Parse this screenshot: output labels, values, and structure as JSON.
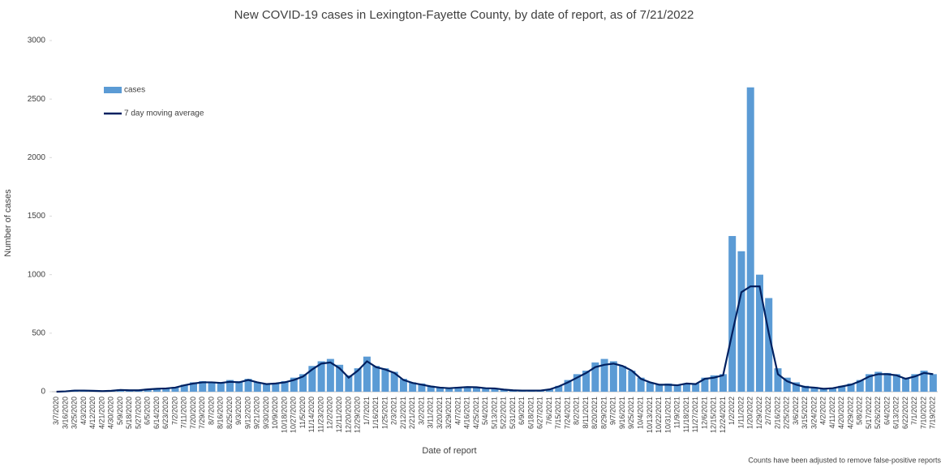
{
  "chart_data": {
    "type": "bar",
    "title": "New COVID-19 cases in Lexington-Fayette County, by date of report, as of 7/21/2022",
    "x_label": "Date of report",
    "y_label": "Number of cases",
    "footnote": "Counts have been adjusted to remove false-positive reports",
    "categories": [
      "3/7/2020",
      "3/16/2020",
      "3/25/2020",
      "4/3/2020",
      "4/12/2020",
      "4/21/2020",
      "4/30/2020",
      "5/9/2020",
      "5/18/2020",
      "5/27/2020",
      "6/5/2020",
      "6/14/2020",
      "6/23/2020",
      "7/2/2020",
      "7/11/2020",
      "7/20/2020",
      "7/29/2020",
      "8/7/2020",
      "8/16/2020",
      "8/25/2020",
      "9/3/2020",
      "9/12/2020",
      "9/21/2020",
      "9/30/2020",
      "10/9/2020",
      "10/18/2020",
      "10/27/2020",
      "11/5/2020",
      "11/14/2020",
      "11/23/2020",
      "12/2/2020",
      "12/11/2020",
      "12/20/2020",
      "12/29/2020",
      "1/7/2021",
      "1/16/2021",
      "1/25/2021",
      "2/3/2021",
      "2/12/2021",
      "2/21/2021",
      "3/2/2021",
      "3/11/2021",
      "3/20/2021",
      "3/29/2021",
      "4/7/2021",
      "4/16/2021",
      "4/25/2021",
      "5/4/2021",
      "5/13/2021",
      "5/22/2021",
      "5/31/2021",
      "6/9/2021",
      "6/18/2021",
      "6/27/2021",
      "7/6/2021",
      "7/15/2021",
      "7/24/2021",
      "8/2/2021",
      "8/11/2021",
      "8/20/2021",
      "8/29/2021",
      "9/7/2021",
      "9/16/2021",
      "9/25/2021",
      "10/4/2021",
      "10/13/2021",
      "10/22/2021",
      "10/31/2021",
      "11/9/2021",
      "11/18/2021",
      "11/27/2021",
      "12/6/2021",
      "12/15/2021",
      "12/24/2021",
      "1/2/2022",
      "1/11/2022",
      "1/20/2022",
      "1/29/2022",
      "2/7/2022",
      "2/16/2022",
      "2/25/2022",
      "3/6/2022",
      "3/15/2022",
      "3/24/2022",
      "4/2/2022",
      "4/11/2022",
      "4/20/2022",
      "4/29/2022",
      "5/8/2022",
      "5/17/2022",
      "5/26/2022",
      "6/4/2022",
      "6/13/2022",
      "6/22/2022",
      "7/1/2022",
      "7/10/2022",
      "7/19/2022"
    ],
    "series": [
      {
        "name": "cases",
        "type": "bar",
        "color": "#5b9bd5",
        "values": [
          0,
          5,
          15,
          12,
          8,
          5,
          10,
          20,
          15,
          15,
          25,
          30,
          30,
          40,
          60,
          80,
          90,
          85,
          80,
          100,
          90,
          110,
          80,
          70,
          75,
          90,
          120,
          150,
          220,
          260,
          280,
          230,
          140,
          200,
          300,
          220,
          200,
          170,
          110,
          80,
          70,
          50,
          40,
          35,
          40,
          45,
          40,
          35,
          30,
          20,
          15,
          10,
          10,
          10,
          20,
          50,
          100,
          150,
          180,
          250,
          280,
          260,
          220,
          180,
          120,
          80,
          60,
          70,
          60,
          70,
          70,
          120,
          140,
          150,
          1330,
          1200,
          2600,
          1000,
          800,
          200,
          120,
          80,
          50,
          40,
          25,
          35,
          50,
          70,
          100,
          150,
          170,
          160,
          150,
          120,
          150,
          180,
          150
        ]
      },
      {
        "name": "7 day moving average",
        "type": "line",
        "color": "#002060",
        "values": [
          0,
          3,
          10,
          10,
          8,
          5,
          8,
          15,
          12,
          12,
          20,
          25,
          28,
          35,
          55,
          70,
          80,
          80,
          75,
          85,
          80,
          100,
          80,
          65,
          70,
          80,
          100,
          130,
          190,
          240,
          250,
          200,
          120,
          180,
          260,
          210,
          190,
          160,
          100,
          75,
          60,
          45,
          35,
          30,
          35,
          40,
          38,
          30,
          28,
          18,
          12,
          10,
          10,
          10,
          20,
          45,
          80,
          120,
          160,
          210,
          230,
          240,
          220,
          180,
          110,
          80,
          60,
          60,
          55,
          70,
          65,
          110,
          120,
          140,
          500,
          850,
          900,
          900,
          500,
          150,
          90,
          60,
          40,
          35,
          25,
          30,
          45,
          60,
          90,
          130,
          150,
          150,
          140,
          110,
          130,
          160,
          150
        ]
      }
    ],
    "ylim": [
      0,
      3000
    ],
    "yticks": [
      0,
      500,
      1000,
      1500,
      2000,
      2500,
      3000
    ]
  }
}
